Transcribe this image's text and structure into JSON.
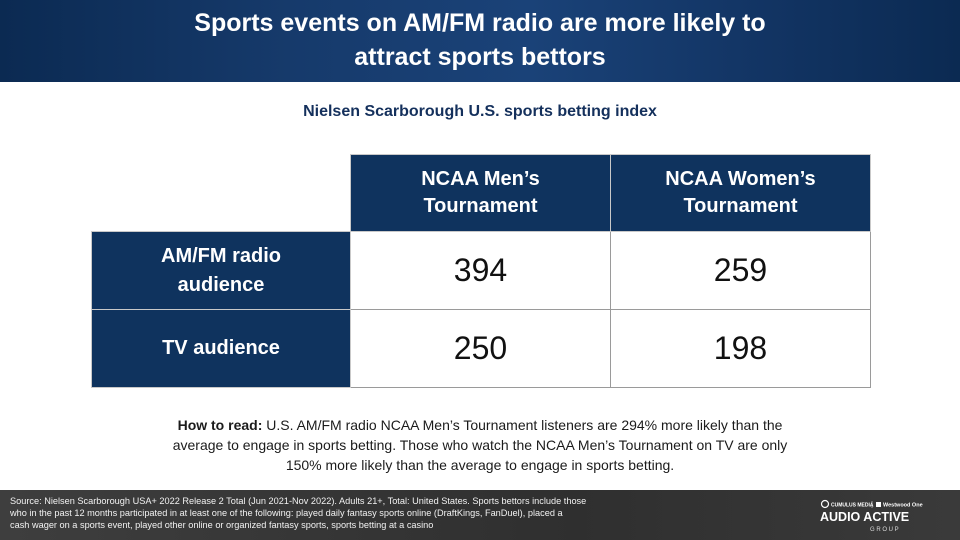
{
  "header": {
    "title_line1": "Sports events on AM/FM radio are more likely to",
    "title_line2": "attract sports bettors"
  },
  "chart_data": {
    "type": "table",
    "title": "Nielsen Scarborough U.S. sports betting index",
    "columns": [
      {
        "line1": "NCAA Men’s",
        "line2": "Tournament"
      },
      {
        "line1": "NCAA Women’s",
        "line2": "Tournament"
      }
    ],
    "rows": [
      {
        "line1": "AM/FM radio",
        "line2": "audience",
        "values": [
          394,
          259
        ]
      },
      {
        "line1": "TV audience",
        "line2": "",
        "values": [
          250,
          198
        ]
      }
    ]
  },
  "how_to_read": {
    "label": "How to read:",
    "line1": " U.S. AM/FM radio NCAA Men’s Tournament listeners are 294% more likely than the",
    "line2": "average to engage in sports betting. Those who watch the NCAA Men’s Tournament on TV are only",
    "line3": "150% more likely than the average to engage in sports betting."
  },
  "footer": {
    "source_line1": "Source: Nielsen Scarborough USA+ 2022 Release 2 Total (Jun 2021-Nov 2022). Adults 21+, Total: United States. Sports bettors include those",
    "source_line2": "who in the past 12 months participated in at least one of the following: played daily fantasy sports online (DraftKings, FanDuel), placed a",
    "source_line3": "cash wager on a sports event, played other online or organized fantasy sports, sports betting at a casino",
    "brand_top_left": "CUMULUS MEDIA",
    "brand_top_right": "Westwood One",
    "brand_main": "AUDIO ACTIVE",
    "brand_sub": "G R O U P"
  },
  "colors": {
    "header_blue": "#163a6b",
    "table_blue": "#0f335e",
    "subtitle_blue": "#14305c",
    "footer_gray": "#333333"
  }
}
